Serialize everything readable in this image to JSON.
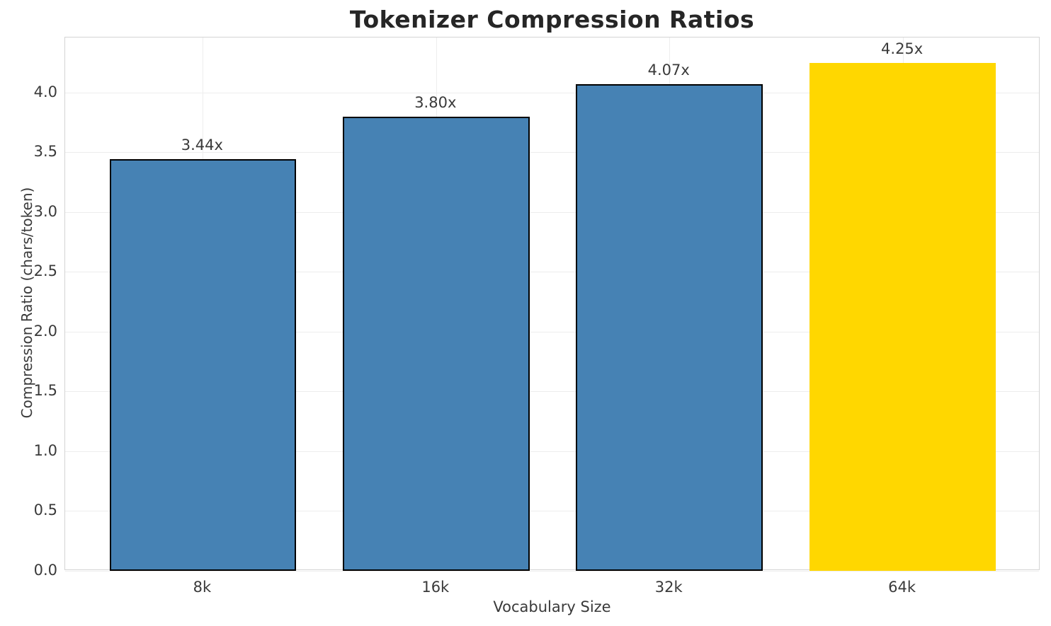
{
  "chart_data": {
    "type": "bar",
    "title": "Tokenizer Compression Ratios",
    "xlabel": "Vocabulary Size",
    "ylabel": "Compression Ratio (chars/token)",
    "categories": [
      "8k",
      "16k",
      "32k",
      "64k"
    ],
    "values": [
      3.44,
      3.8,
      4.07,
      4.25
    ],
    "bar_labels": [
      "3.44x",
      "3.80x",
      "4.07x",
      "4.25x"
    ],
    "bar_colors": [
      "#4682B4",
      "#4682B4",
      "#4682B4",
      "#FFD700"
    ],
    "bar_edge_colors": [
      "#000000",
      "#000000",
      "#000000",
      "none"
    ],
    "ylim": [
      0,
      4.46
    ],
    "yticks": [
      0.0,
      0.5,
      1.0,
      1.5,
      2.0,
      2.5,
      3.0,
      3.5,
      4.0
    ],
    "ytick_labels": [
      "0.0",
      "0.5",
      "1.0",
      "1.5",
      "2.0",
      "2.5",
      "3.0",
      "3.5",
      "4.0"
    ],
    "grid": true,
    "grid_axis": "both",
    "legend": false,
    "bar_width_fraction": 0.8
  },
  "colors": {
    "bar_blue": "#4682B4",
    "bar_gold": "#FFD700",
    "bar_edge": "#000000",
    "grid": "#ededed",
    "spine": "#d4d4d4",
    "title_text": "#262626",
    "tick_text": "#3a3a3a",
    "background": "#ffffff"
  }
}
